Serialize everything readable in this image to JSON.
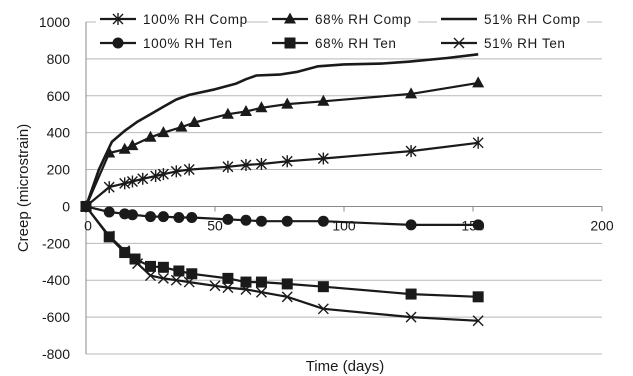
{
  "chart_data": {
    "type": "line",
    "title": "",
    "xlabel": "Time  (days)",
    "ylabel": "Creep  (microstrain)",
    "xlim": [
      0,
      200
    ],
    "ylim": [
      -800,
      1000
    ],
    "x_ticks": [
      0,
      50,
      100,
      150,
      200
    ],
    "y_ticks": [
      -800,
      -600,
      -400,
      -200,
      0,
      200,
      400,
      600,
      800,
      1000
    ],
    "grid": "horizontal",
    "legend_position": "top",
    "line_color": "#1a1a1a",
    "series": [
      {
        "name": "100% RH Comp",
        "marker": "asterisk",
        "points": [
          [
            0,
            0
          ],
          [
            9,
            105
          ],
          [
            15,
            125
          ],
          [
            18,
            135
          ],
          [
            22,
            150
          ],
          [
            27,
            165
          ],
          [
            30,
            175
          ],
          [
            35,
            190
          ],
          [
            40,
            200
          ],
          [
            55,
            215
          ],
          [
            62,
            225
          ],
          [
            68,
            230
          ],
          [
            78,
            245
          ],
          [
            92,
            260
          ],
          [
            126,
            300
          ],
          [
            152,
            345
          ]
        ]
      },
      {
        "name": "68% RH Comp",
        "marker": "triangle",
        "points": [
          [
            0,
            0
          ],
          [
            9,
            290
          ],
          [
            15,
            310
          ],
          [
            18,
            330
          ],
          [
            25,
            375
          ],
          [
            30,
            400
          ],
          [
            37,
            430
          ],
          [
            42,
            455
          ],
          [
            55,
            500
          ],
          [
            62,
            515
          ],
          [
            68,
            535
          ],
          [
            78,
            555
          ],
          [
            92,
            570
          ],
          [
            126,
            610
          ],
          [
            152,
            670
          ]
        ]
      },
      {
        "name": "51% RH Comp",
        "marker": "none",
        "points": [
          [
            0,
            0
          ],
          [
            5,
            200
          ],
          [
            10,
            350
          ],
          [
            15,
            410
          ],
          [
            20,
            460
          ],
          [
            25,
            500
          ],
          [
            30,
            540
          ],
          [
            35,
            580
          ],
          [
            40,
            605
          ],
          [
            50,
            635
          ],
          [
            58,
            665
          ],
          [
            62,
            690
          ],
          [
            66,
            710
          ],
          [
            75,
            715
          ],
          [
            82,
            730
          ],
          [
            90,
            760
          ],
          [
            100,
            770
          ],
          [
            115,
            775
          ],
          [
            125,
            785
          ],
          [
            140,
            805
          ],
          [
            152,
            825
          ]
        ]
      },
      {
        "name": "100% RH Ten",
        "marker": "circle",
        "points": [
          [
            0,
            0
          ],
          [
            9,
            -30
          ],
          [
            15,
            -40
          ],
          [
            18,
            -45
          ],
          [
            25,
            -55
          ],
          [
            30,
            -55
          ],
          [
            36,
            -60
          ],
          [
            41,
            -60
          ],
          [
            55,
            -70
          ],
          [
            62,
            -75
          ],
          [
            68,
            -80
          ],
          [
            78,
            -80
          ],
          [
            92,
            -80
          ],
          [
            126,
            -100
          ],
          [
            152,
            -100
          ]
        ]
      },
      {
        "name": "68% RH Ten",
        "marker": "square",
        "points": [
          [
            0,
            0
          ],
          [
            9,
            -165
          ],
          [
            15,
            -250
          ],
          [
            19,
            -285
          ],
          [
            25,
            -325
          ],
          [
            30,
            -330
          ],
          [
            36,
            -350
          ],
          [
            41,
            -365
          ],
          [
            55,
            -390
          ],
          [
            62,
            -410
          ],
          [
            68,
            -410
          ],
          [
            78,
            -420
          ],
          [
            92,
            -435
          ],
          [
            126,
            -475
          ],
          [
            152,
            -490
          ]
        ]
      },
      {
        "name": "51% RH Ten",
        "marker": "x",
        "points": [
          [
            0,
            0
          ],
          [
            9,
            -160
          ],
          [
            15,
            -240
          ],
          [
            20,
            -310
          ],
          [
            25,
            -375
          ],
          [
            30,
            -390
          ],
          [
            35,
            -400
          ],
          [
            40,
            -410
          ],
          [
            50,
            -430
          ],
          [
            55,
            -440
          ],
          [
            62,
            -450
          ],
          [
            68,
            -465
          ],
          [
            78,
            -490
          ],
          [
            92,
            -555
          ],
          [
            126,
            -600
          ],
          [
            152,
            -620
          ]
        ]
      }
    ]
  }
}
